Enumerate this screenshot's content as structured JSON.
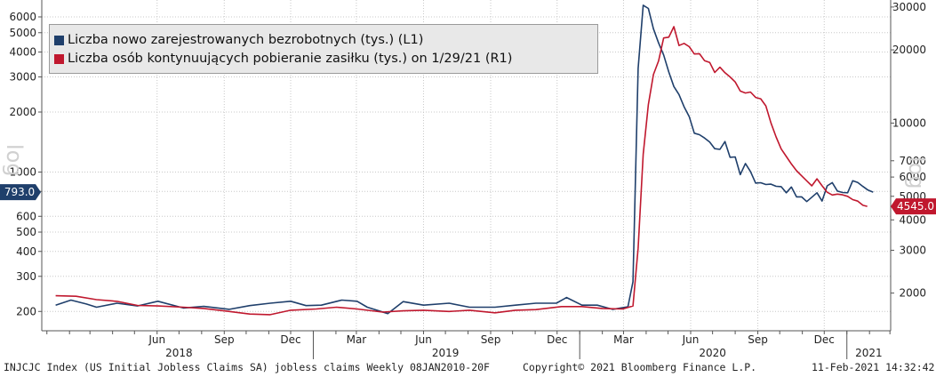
{
  "chart_data": {
    "type": "line",
    "legend": [
      {
        "label": "Liczba nowo zarejestrowanych bezrobotnych (tys.) (L1)",
        "color": "#1f3f6b"
      },
      {
        "label": "Liczba osób kontynuujących pobieranie zasiłku (tys.) on 1/29/21 (R1)",
        "color": "#c0182e"
      }
    ],
    "left_axis": {
      "label": "log",
      "scale": "log",
      "ticks": [
        200,
        300,
        400,
        500,
        600,
        800,
        1000,
        2000,
        3000,
        4000,
        5000,
        6000
      ],
      "range": [
        160,
        7000
      ]
    },
    "right_axis": {
      "label": "log",
      "scale": "log",
      "ticks": [
        2000,
        3000,
        4000,
        5000,
        6000,
        7000,
        10000,
        20000,
        30000
      ],
      "range": [
        1400,
        31000
      ]
    },
    "x_month_labels": [
      "Jun",
      "Sep",
      "Dec",
      "Mar",
      "Jun",
      "Sep",
      "Dec",
      "Mar",
      "Jun",
      "Sep",
      "Dec"
    ],
    "x_year_labels": [
      "2018",
      "2019",
      "2020",
      "2021"
    ],
    "last_value_tags": [
      {
        "text": "793.0",
        "series": 0,
        "side": "left",
        "value": 793
      },
      {
        "text": "4545.0",
        "series": 1,
        "side": "right",
        "value": 4545
      }
    ],
    "series": [
      {
        "name": "Liczba nowo zarejestrowanych bezrobotnych (tys.) (L1)",
        "axis": "left",
        "color": "#1f3f6b",
        "points": [
          [
            "2018-01-13",
            215
          ],
          [
            "2018-02-03",
            228
          ],
          [
            "2018-02-24",
            218
          ],
          [
            "2018-03-10",
            210
          ],
          [
            "2018-04-07",
            220
          ],
          [
            "2018-05-05",
            213
          ],
          [
            "2018-06-02",
            225
          ],
          [
            "2018-07-07",
            208
          ],
          [
            "2018-08-04",
            212
          ],
          [
            "2018-09-08",
            205
          ],
          [
            "2018-10-06",
            214
          ],
          [
            "2018-11-03",
            220
          ],
          [
            "2018-12-01",
            225
          ],
          [
            "2018-12-22",
            214
          ],
          [
            "2019-01-12",
            215
          ],
          [
            "2019-02-09",
            228
          ],
          [
            "2019-03-02",
            225
          ],
          [
            "2019-03-16",
            210
          ],
          [
            "2019-04-13",
            195
          ],
          [
            "2019-05-04",
            224
          ],
          [
            "2019-06-01",
            215
          ],
          [
            "2019-07-06",
            220
          ],
          [
            "2019-08-03",
            210
          ],
          [
            "2019-09-07",
            210
          ],
          [
            "2019-10-05",
            215
          ],
          [
            "2019-11-02",
            220
          ],
          [
            "2019-11-30",
            220
          ],
          [
            "2019-12-14",
            235
          ],
          [
            "2020-01-04",
            215
          ],
          [
            "2020-01-25",
            215
          ],
          [
            "2020-02-15",
            205
          ],
          [
            "2020-03-07",
            211
          ],
          [
            "2020-03-14",
            282
          ],
          [
            "2020-03-21",
            3307
          ],
          [
            "2020-03-28",
            6867
          ],
          [
            "2020-04-04",
            6615
          ],
          [
            "2020-04-11",
            5237
          ],
          [
            "2020-04-18",
            4442
          ],
          [
            "2020-04-25",
            3867
          ],
          [
            "2020-05-02",
            3176
          ],
          [
            "2020-05-09",
            2687
          ],
          [
            "2020-05-16",
            2446
          ],
          [
            "2020-05-23",
            2126
          ],
          [
            "2020-05-30",
            1897
          ],
          [
            "2020-06-06",
            1566
          ],
          [
            "2020-06-13",
            1540
          ],
          [
            "2020-06-20",
            1482
          ],
          [
            "2020-06-27",
            1413
          ],
          [
            "2020-07-04",
            1310
          ],
          [
            "2020-07-11",
            1300
          ],
          [
            "2020-07-18",
            1422
          ],
          [
            "2020-07-25",
            1186
          ],
          [
            "2020-08-01",
            1191
          ],
          [
            "2020-08-08",
            971
          ],
          [
            "2020-08-15",
            1104
          ],
          [
            "2020-08-22",
            1006
          ],
          [
            "2020-08-29",
            881
          ],
          [
            "2020-09-05",
            884
          ],
          [
            "2020-09-12",
            866
          ],
          [
            "2020-09-19",
            870
          ],
          [
            "2020-09-26",
            849
          ],
          [
            "2020-10-03",
            845
          ],
          [
            "2020-10-10",
            787
          ],
          [
            "2020-10-17",
            842
          ],
          [
            "2020-10-24",
            751
          ],
          [
            "2020-10-31",
            751
          ],
          [
            "2020-11-07",
            711
          ],
          [
            "2020-11-14",
            748
          ],
          [
            "2020-11-21",
            787
          ],
          [
            "2020-11-28",
            716
          ],
          [
            "2020-12-05",
            853
          ],
          [
            "2020-12-12",
            885
          ],
          [
            "2020-12-19",
            803
          ],
          [
            "2020-12-26",
            790
          ],
          [
            "2021-01-02",
            787
          ],
          [
            "2021-01-09",
            904
          ],
          [
            "2021-01-16",
            886
          ],
          [
            "2021-01-23",
            847
          ],
          [
            "2021-01-30",
            812
          ],
          [
            "2021-02-06",
            793
          ]
        ]
      },
      {
        "name": "Liczba osób kontynuujących pobieranie zasiłku (tys.) on 1/29/21 (R1)",
        "axis": "right",
        "color": "#c0182e",
        "points": [
          [
            "2018-01-13",
            1950
          ],
          [
            "2018-02-10",
            1940
          ],
          [
            "2018-03-10",
            1880
          ],
          [
            "2018-04-07",
            1850
          ],
          [
            "2018-05-05",
            1780
          ],
          [
            "2018-06-02",
            1770
          ],
          [
            "2018-07-07",
            1750
          ],
          [
            "2018-08-04",
            1730
          ],
          [
            "2018-09-08",
            1680
          ],
          [
            "2018-10-06",
            1640
          ],
          [
            "2018-11-03",
            1630
          ],
          [
            "2018-12-01",
            1700
          ],
          [
            "2019-01-05",
            1720
          ],
          [
            "2019-02-02",
            1750
          ],
          [
            "2019-03-02",
            1720
          ],
          [
            "2019-04-06",
            1670
          ],
          [
            "2019-05-04",
            1690
          ],
          [
            "2019-06-01",
            1700
          ],
          [
            "2019-07-06",
            1680
          ],
          [
            "2019-08-03",
            1700
          ],
          [
            "2019-09-07",
            1660
          ],
          [
            "2019-10-05",
            1700
          ],
          [
            "2019-11-02",
            1710
          ],
          [
            "2019-12-07",
            1760
          ],
          [
            "2020-01-04",
            1760
          ],
          [
            "2020-02-01",
            1730
          ],
          [
            "2020-02-29",
            1720
          ],
          [
            "2020-03-14",
            1770
          ],
          [
            "2020-03-21",
            3059
          ],
          [
            "2020-03-28",
            7446
          ],
          [
            "2020-04-04",
            11914
          ],
          [
            "2020-04-11",
            15819
          ],
          [
            "2020-04-18",
            18011
          ],
          [
            "2020-04-25",
            22377
          ],
          [
            "2020-05-02",
            22548
          ],
          [
            "2020-05-09",
            24912
          ],
          [
            "2020-05-16",
            20838
          ],
          [
            "2020-05-23",
            21268
          ],
          [
            "2020-05-30",
            20606
          ],
          [
            "2020-06-06",
            19231
          ],
          [
            "2020-06-13",
            19290
          ],
          [
            "2020-06-20",
            18062
          ],
          [
            "2020-06-27",
            17760
          ],
          [
            "2020-07-04",
            16151
          ],
          [
            "2020-07-11",
            16970
          ],
          [
            "2020-07-18",
            16107
          ],
          [
            "2020-07-25",
            15486
          ],
          [
            "2020-08-01",
            14759
          ],
          [
            "2020-08-08",
            13544
          ],
          [
            "2020-08-15",
            13292
          ],
          [
            "2020-08-22",
            13412
          ],
          [
            "2020-08-29",
            12747
          ],
          [
            "2020-09-05",
            12580
          ],
          [
            "2020-09-12",
            11767
          ],
          [
            "2020-09-19",
            10018
          ],
          [
            "2020-09-26",
            8767
          ],
          [
            "2020-10-03",
            7838
          ],
          [
            "2020-10-10",
            7285
          ],
          [
            "2020-10-17",
            6788
          ],
          [
            "2020-10-24",
            6370
          ],
          [
            "2020-10-31",
            6071
          ],
          [
            "2020-11-07",
            5786
          ],
          [
            "2020-11-14",
            5520
          ],
          [
            "2020-11-21",
            5902
          ],
          [
            "2020-11-28",
            5527
          ],
          [
            "2020-12-05",
            5197
          ],
          [
            "2020-12-12",
            5064
          ],
          [
            "2020-12-19",
            5103
          ],
          [
            "2020-12-26",
            5072
          ],
          [
            "2021-01-02",
            4999
          ],
          [
            "2021-01-09",
            4844
          ],
          [
            "2021-01-16",
            4778
          ],
          [
            "2021-01-23",
            4592
          ],
          [
            "2021-01-29",
            4545
          ]
        ]
      }
    ]
  },
  "footer": {
    "left": "INJCJC Index (US Initial Jobless Claims SA) jobless claims  Weekly 08JAN2010-20F",
    "center": "Copyright© 2021 Bloomberg Finance L.P.",
    "right": "11-Feb-2021 14:32:42"
  }
}
